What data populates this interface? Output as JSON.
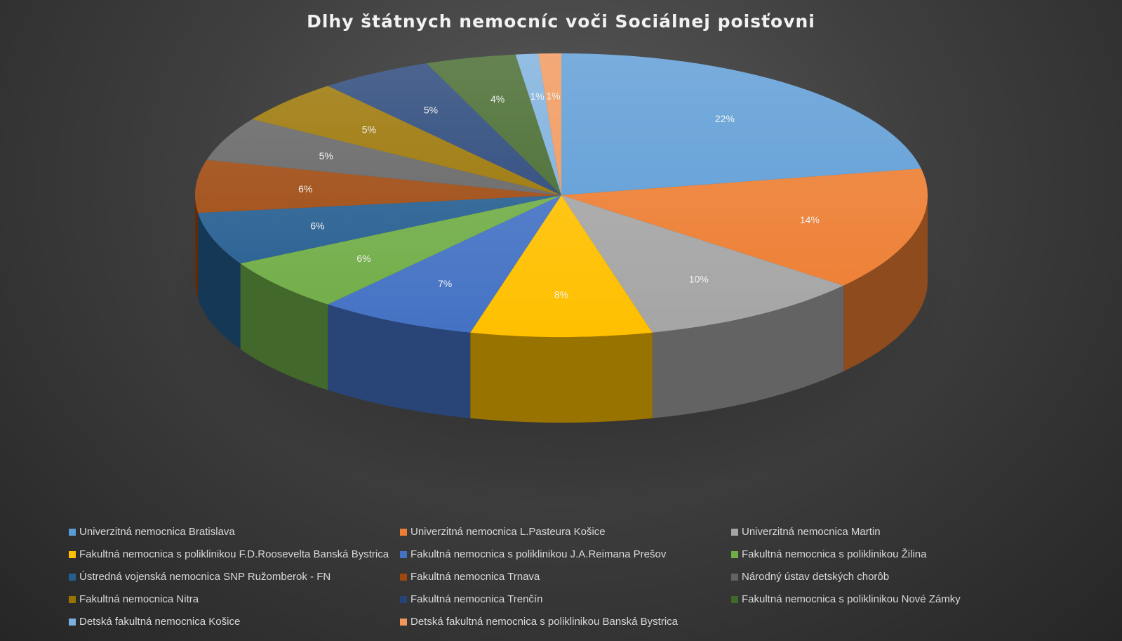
{
  "chart_data": {
    "type": "pie",
    "title": "Dlhy štátnych nemocníc voči Sociálnej poisťovni",
    "legend_position": "bottom",
    "slices": [
      {
        "name": "Univerzitná nemocnica Bratislava",
        "value": 22,
        "label": "22%",
        "color": "#5b9bd5"
      },
      {
        "name": "Univerzitná nemocnica L.Pasteura Košice",
        "value": 14,
        "label": "14%",
        "color": "#ed7d31"
      },
      {
        "name": "Univerzitná nemocnica Martin",
        "value": 10,
        "label": "10%",
        "color": "#a5a5a5"
      },
      {
        "name": "Fakultná nemocnica s poliklinikou F.D.Roosevelta Banská Bystrica",
        "value": 8,
        "label": "8%",
        "color": "#ffc000"
      },
      {
        "name": "Fakultná nemocnica s poliklinikou J.A.Reimana Prešov",
        "value": 7,
        "label": "7%",
        "color": "#4472c4"
      },
      {
        "name": "Fakultná nemocnica s poliklinikou Žilina",
        "value": 6,
        "label": "6%",
        "color": "#70ad47"
      },
      {
        "name": "Ústredná vojenská nemocnica SNP Ružomberok - FN",
        "value": 6,
        "label": "6%",
        "color": "#255e91"
      },
      {
        "name": "Fakultná nemocnica Trnava",
        "value": 6,
        "label": "6%",
        "color": "#9e480e"
      },
      {
        "name": "Národný ústav detských chorôb",
        "value": 5,
        "label": "5%",
        "color": "#636363"
      },
      {
        "name": "Fakultná nemocnica Nitra",
        "value": 5,
        "label": "5%",
        "color": "#997300"
      },
      {
        "name": "Fakultná nemocnica Trenčín",
        "value": 5,
        "label": "5%",
        "color": "#264478"
      },
      {
        "name": "Fakultná nemocnica s poliklinikou Nové Zámky",
        "value": 4,
        "label": "4%",
        "color": "#43682b"
      },
      {
        "name": "Detská fakultná nemocnica Košice",
        "value": 1,
        "label": "1%",
        "color": "#7cafdd"
      },
      {
        "name": "Detská fakultná nemocnica s poliklinikou Banská Bystrica",
        "value": 1,
        "label": "1%",
        "color": "#f1975a"
      }
    ]
  }
}
